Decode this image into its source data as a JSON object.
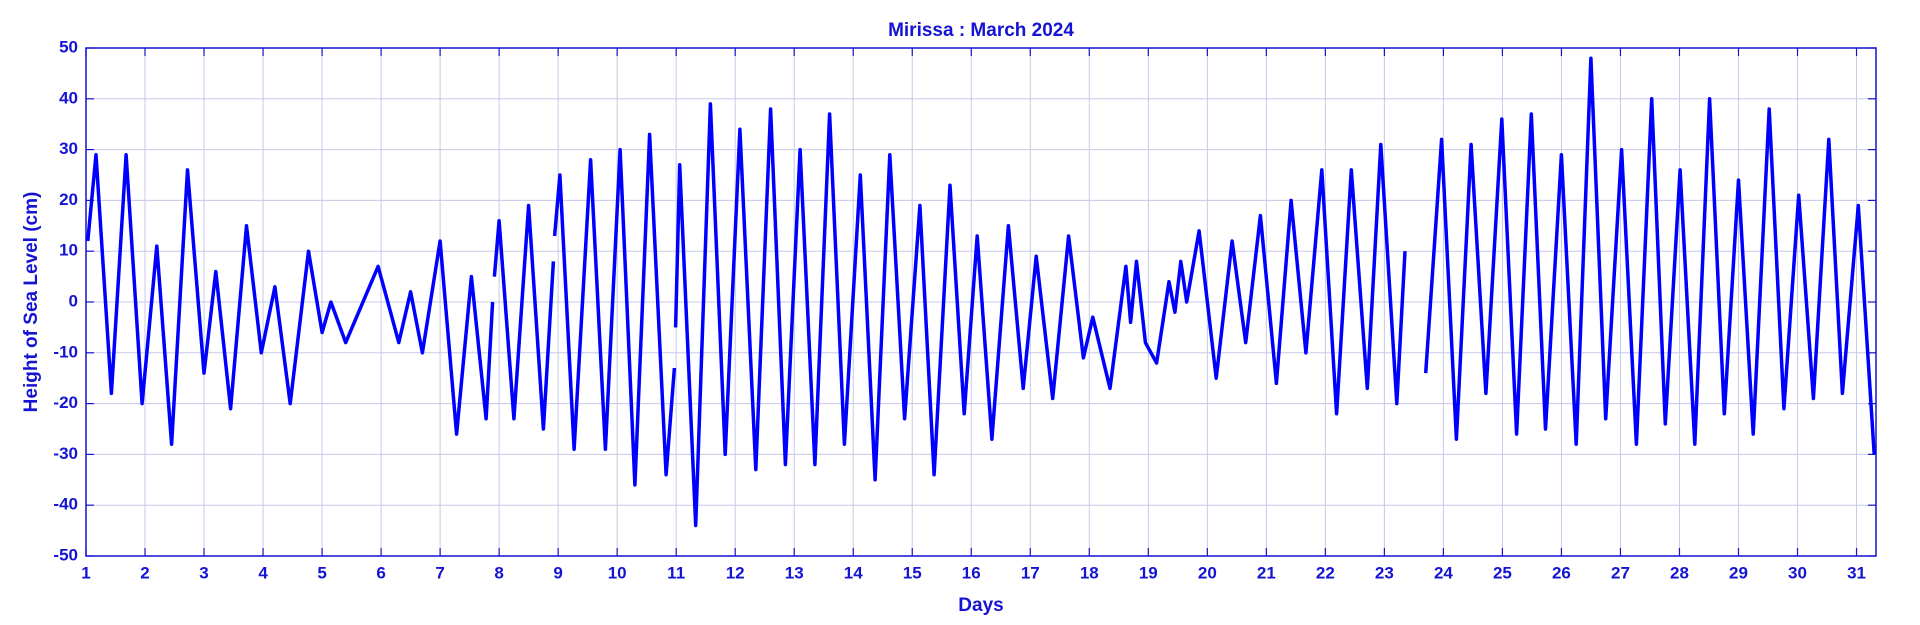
{
  "chart_data": {
    "type": "line",
    "title": "Mirissa : March 2024",
    "x_label": "Days",
    "y_label": "Height of Sea Level (cm)",
    "color": "#0000ff",
    "x": [
      1.03,
      1.17,
      1.43,
      1.68,
      1.95,
      2.2,
      2.45,
      2.72,
      3.0,
      3.2,
      3.45,
      3.72,
      3.97,
      4.2,
      4.46,
      4.77,
      5.0,
      5.15,
      5.4,
      5.95,
      6.3,
      6.5,
      6.7,
      7.0,
      7.28,
      7.53,
      7.78,
      7.89,
      7.9,
      7.92,
      8.0,
      8.25,
      8.5,
      8.75,
      8.92,
      8.93,
      8.94,
      9.03,
      9.27,
      9.55,
      9.8,
      10.05,
      10.3,
      10.55,
      10.83,
      10.97,
      10.98,
      10.99,
      11.06,
      11.33,
      11.58,
      11.83,
      12.08,
      12.35,
      12.6,
      12.85,
      13.1,
      13.35,
      13.6,
      13.85,
      14.12,
      14.37,
      14.62,
      14.87,
      15.13,
      15.37,
      15.64,
      15.88,
      16.1,
      16.35,
      16.63,
      16.88,
      17.1,
      17.38,
      17.65,
      17.9,
      18.06,
      18.35,
      18.62,
      18.7,
      18.8,
      18.95,
      19.14,
      19.35,
      19.45,
      19.55,
      19.65,
      19.86,
      20.15,
      20.42,
      20.65,
      20.9,
      21.17,
      21.42,
      21.67,
      21.94,
      22.19,
      22.44,
      22.71,
      22.94,
      23.21,
      23.35,
      23.5,
      23.7,
      23.97,
      24.22,
      24.47,
      24.72,
      24.99,
      25.24,
      25.49,
      25.73,
      26.0,
      26.25,
      26.5,
      26.75,
      27.02,
      27.27,
      27.53,
      27.76,
      28.01,
      28.26,
      28.51,
      28.76,
      29.0,
      29.25,
      29.52,
      29.77,
      30.02,
      30.27,
      30.53,
      30.76,
      31.03,
      31.3
    ],
    "values": [
      12,
      29,
      -18,
      29,
      -20,
      11,
      -28,
      26,
      -14,
      6,
      -21,
      15,
      -10,
      3,
      -20,
      10,
      -6,
      0,
      -8,
      7,
      -8,
      2,
      -10,
      12,
      -26,
      5,
      -23,
      0,
      null,
      5,
      16,
      -23,
      19,
      -25,
      8,
      null,
      13,
      25,
      -29,
      28,
      -29,
      30,
      -36,
      33,
      -34,
      -13,
      null,
      -5,
      27,
      -44,
      39,
      -30,
      34,
      -33,
      38,
      -32,
      30,
      -32,
      37,
      -28,
      25,
      -35,
      29,
      -23,
      19,
      -34,
      23,
      -22,
      13,
      -27,
      15,
      -17,
      9,
      -19,
      13,
      -11,
      -3,
      -17,
      7,
      -4,
      8,
      -8,
      -12,
      4,
      -2,
      8,
      0,
      14,
      -15,
      12,
      -8,
      17,
      -16,
      20,
      -10,
      26,
      -22,
      26,
      -17,
      31,
      -20,
      10,
      null,
      -14,
      32,
      -27,
      31,
      -18,
      36,
      -26,
      37,
      -25,
      29,
      -28,
      48,
      -23,
      30,
      -28,
      40,
      -24,
      26,
      -28,
      40,
      -22,
      24,
      -26,
      38,
      -21,
      21,
      -19,
      32,
      -18,
      19,
      -30
    ],
    "xlim": [
      1,
      31.33
    ],
    "xticks": [
      1,
      2,
      3,
      4,
      5,
      6,
      7,
      8,
      9,
      10,
      11,
      12,
      13,
      14,
      15,
      16,
      17,
      18,
      19,
      20,
      21,
      22,
      23,
      24,
      25,
      26,
      27,
      28,
      29,
      30,
      31
    ],
    "ylim": [
      -50,
      50
    ],
    "yticks": [
      -50,
      -40,
      -30,
      -20,
      -10,
      0,
      10,
      20,
      30,
      40,
      50
    ],
    "grid": true
  }
}
